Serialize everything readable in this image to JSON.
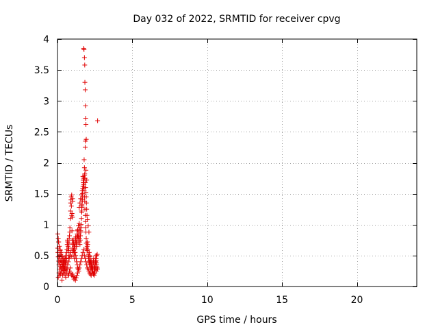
{
  "chart_data": {
    "type": "scatter",
    "title": "Day 032 of 2022, SRMTID for receiver cpvg",
    "xlabel": "GPS time / hours",
    "ylabel": "SRMTID / TECUs",
    "xlim": [
      0,
      24
    ],
    "ylim": [
      0,
      4
    ],
    "xticks": [
      0,
      5,
      10,
      15,
      20
    ],
    "xtick_labels": [
      "0",
      "5",
      "10",
      "15",
      "20"
    ],
    "yticks": [
      0,
      0.5,
      1,
      1.5,
      2,
      2.5,
      3,
      3.5,
      4
    ],
    "ytick_labels": [
      "0",
      "0.5",
      "1",
      "1.5",
      "2",
      "2.5",
      "3",
      "3.5",
      "4"
    ],
    "grid": true,
    "marker": "+",
    "color": "#e00000",
    "series": [
      {
        "name": "SRMTID",
        "x": [
          0.02,
          0.03,
          0.05,
          0.07,
          0.08,
          0.1,
          0.12,
          0.13,
          0.15,
          0.17,
          0.18,
          0.2,
          0.22,
          0.23,
          0.25,
          0.27,
          0.28,
          0.3,
          0.32,
          0.33,
          0.35,
          0.37,
          0.38,
          0.4,
          0.42,
          0.43,
          0.45,
          0.47,
          0.48,
          0.5,
          0.52,
          0.53,
          0.55,
          0.57,
          0.58,
          0.6,
          0.62,
          0.63,
          0.65,
          0.67,
          0.68,
          0.7,
          0.72,
          0.73,
          0.75,
          0.77,
          0.78,
          0.8,
          0.82,
          0.83,
          0.85,
          0.87,
          0.88,
          0.9,
          0.92,
          0.93,
          0.95,
          0.97,
          0.98,
          1.0,
          1.02,
          1.03,
          1.05,
          1.07,
          1.08,
          1.1,
          1.12,
          1.13,
          1.15,
          1.17,
          1.18,
          1.2,
          1.22,
          1.23,
          1.25,
          1.27,
          1.28,
          1.3,
          1.32,
          1.33,
          1.35,
          1.37,
          1.38,
          1.4,
          1.42,
          1.43,
          1.45,
          1.47,
          1.48,
          1.5,
          1.52,
          1.53,
          1.55,
          1.57,
          1.58,
          1.6,
          1.62,
          1.63,
          1.65,
          1.67,
          1.68,
          1.7,
          1.72,
          1.73,
          1.75,
          1.77,
          1.78,
          1.8,
          1.82,
          1.83,
          1.85,
          1.87,
          1.88,
          1.9,
          1.92,
          1.93,
          1.95,
          1.97,
          1.98,
          2.0,
          2.02,
          2.03,
          2.05,
          2.07,
          2.08,
          2.1,
          2.12,
          2.13,
          2.15,
          2.17,
          2.18,
          2.2,
          2.22,
          2.23,
          2.25,
          2.27,
          2.28,
          2.3,
          2.32,
          2.33,
          2.35,
          2.37,
          2.38,
          2.4,
          2.42,
          2.43,
          2.45,
          2.47,
          2.48,
          2.5,
          2.52,
          2.53,
          2.55,
          2.57,
          2.58,
          2.6,
          2.62,
          2.63,
          2.65,
          2.67,
          0.05,
          0.1,
          0.15,
          0.2,
          0.25,
          0.3,
          0.35,
          0.4,
          0.45,
          0.5,
          0.55,
          0.6,
          0.65,
          0.7,
          0.75,
          0.8,
          0.85,
          0.9,
          0.95,
          1.0,
          1.05,
          1.1,
          1.15,
          1.2,
          1.25,
          1.3,
          1.35,
          1.4,
          1.45,
          1.5,
          1.55,
          1.6,
          1.65,
          1.7,
          1.75,
          1.8,
          1.85,
          1.9,
          1.95,
          2.0,
          2.05,
          2.1,
          2.15,
          2.2,
          2.25,
          2.3,
          2.35,
          2.4,
          2.45,
          2.5,
          2.55,
          2.6,
          0.95,
          1.0,
          1.02,
          0.97,
          1.0,
          1.75,
          1.77,
          1.8,
          1.82,
          1.83,
          1.85,
          1.87,
          1.88,
          1.9,
          1.92,
          1.78,
          1.8,
          1.85,
          1.87,
          1.9,
          1.95,
          2.68,
          1.82,
          1.84,
          1.86,
          1.88,
          1.9,
          1.92,
          1.93,
          1.95,
          1.97,
          2.0,
          2.05,
          2.1,
          1.7,
          1.72,
          1.74,
          1.76,
          1.75,
          1.77,
          1.79,
          1.81,
          1.45,
          1.5,
          1.55,
          1.6,
          1.65,
          1.6,
          1.62,
          1.64,
          1.66,
          1.68,
          1.35,
          1.4,
          1.45,
          1.5,
          1.55,
          0.02,
          0.05,
          0.08,
          0.12,
          0.18,
          0.22,
          0.28,
          0.32,
          0.38,
          0.42,
          0.48,
          0.52,
          0.58,
          0.62,
          0.68,
          0.72,
          0.78,
          0.82,
          0.88,
          0.92,
          1.05,
          1.08,
          1.12,
          1.15,
          1.18,
          1.22,
          1.25,
          1.28,
          1.32,
          1.35,
          1.38,
          1.42,
          2.12,
          2.15,
          2.18,
          2.22,
          2.25,
          2.28,
          2.32,
          2.35,
          2.38,
          2.42,
          2.45,
          2.48,
          2.52,
          2.55,
          2.58,
          2.62,
          2.65
        ],
        "y": [
          0.62,
          0.55,
          0.48,
          0.72,
          0.41,
          0.35,
          0.5,
          0.28,
          0.45,
          0.38,
          0.6,
          0.32,
          0.42,
          0.25,
          0.55,
          0.3,
          0.4,
          0.22,
          0.36,
          0.48,
          0.28,
          0.33,
          0.45,
          0.3,
          0.4,
          0.35,
          0.42,
          0.38,
          0.3,
          0.45,
          0.4,
          0.35,
          0.5,
          0.42,
          0.38,
          0.46,
          0.55,
          0.6,
          0.68,
          0.75,
          0.72,
          0.65,
          0.58,
          0.5,
          0.62,
          0.7,
          0.78,
          0.82,
          0.88,
          0.95,
          1.1,
          1.22,
          1.35,
          1.4,
          1.45,
          1.3,
          1.15,
          0.9,
          0.75,
          0.68,
          0.6,
          0.55,
          0.62,
          0.7,
          0.58,
          0.5,
          0.45,
          0.55,
          0.62,
          0.68,
          0.72,
          0.78,
          0.8,
          0.75,
          0.7,
          0.65,
          0.72,
          0.8,
          0.85,
          0.9,
          0.82,
          0.78,
          0.72,
          0.8,
          0.88,
          0.92,
          0.85,
          0.78,
          0.72,
          0.68,
          0.75,
          0.82,
          0.9,
          0.95,
          1.0,
          1.1,
          1.2,
          1.3,
          1.4,
          1.5,
          1.58,
          1.62,
          1.68,
          1.72,
          1.75,
          1.65,
          1.55,
          1.45,
          1.38,
          1.25,
          1.15,
          1.05,
          0.95,
          0.88,
          0.78,
          0.7,
          0.62,
          0.58,
          0.65,
          0.72,
          0.68,
          0.6,
          0.52,
          0.48,
          0.45,
          0.4,
          0.38,
          0.35,
          0.42,
          0.48,
          0.4,
          0.35,
          0.3,
          0.28,
          0.32,
          0.38,
          0.42,
          0.35,
          0.3,
          0.25,
          0.28,
          0.32,
          0.38,
          0.42,
          0.45,
          0.38,
          0.32,
          0.28,
          0.25,
          0.3,
          0.35,
          0.4,
          0.45,
          0.5,
          0.42,
          0.38,
          0.35,
          0.32,
          0.3,
          0.28,
          0.15,
          0.22,
          0.18,
          0.2,
          0.28,
          0.1,
          0.18,
          0.22,
          0.26,
          0.2,
          0.15,
          0.22,
          0.28,
          0.2,
          0.18,
          0.25,
          0.3,
          0.22,
          0.18,
          0.2,
          0.16,
          0.12,
          0.15,
          0.1,
          0.14,
          0.18,
          0.22,
          0.28,
          0.3,
          0.35,
          0.4,
          0.45,
          0.5,
          0.55,
          0.6,
          0.5,
          0.45,
          0.4,
          0.35,
          0.3,
          0.28,
          0.25,
          0.22,
          0.2,
          0.18,
          0.22,
          0.25,
          0.2,
          0.18,
          0.22,
          0.28,
          0.25,
          1.48,
          1.42,
          1.38,
          1.18,
          1.12,
          3.85,
          3.83,
          3.7,
          3.58,
          3.3,
          3.18,
          2.92,
          2.72,
          2.62,
          2.38,
          2.05,
          1.92,
          2.25,
          2.35,
          1.88,
          1.72,
          2.68,
          1.82,
          1.75,
          1.68,
          1.6,
          1.52,
          1.45,
          1.35,
          1.25,
          1.15,
          1.08,
          0.98,
          0.88,
          1.78,
          1.72,
          1.65,
          1.58,
          1.62,
          1.68,
          1.75,
          1.8,
          1.28,
          1.35,
          1.42,
          1.48,
          1.55,
          1.22,
          1.28,
          1.32,
          1.38,
          1.45,
          0.92,
          0.98,
          1.02,
          0.95,
          0.88,
          0.85,
          0.78,
          0.72,
          0.65,
          0.58,
          0.52,
          0.48,
          0.42,
          0.38,
          0.32,
          0.3,
          0.28,
          0.25,
          0.3,
          0.35,
          0.4,
          0.45,
          0.5,
          0.55,
          0.48,
          0.75,
          0.7,
          0.65,
          0.6,
          0.55,
          0.5,
          0.45,
          0.4,
          0.35,
          0.3,
          0.28,
          0.25,
          0.55,
          0.5,
          0.45,
          0.4,
          0.35,
          0.3,
          0.28,
          0.25,
          0.22,
          0.2,
          0.25,
          0.3,
          0.35,
          0.4,
          0.45,
          0.5,
          0.52
        ]
      }
    ]
  }
}
